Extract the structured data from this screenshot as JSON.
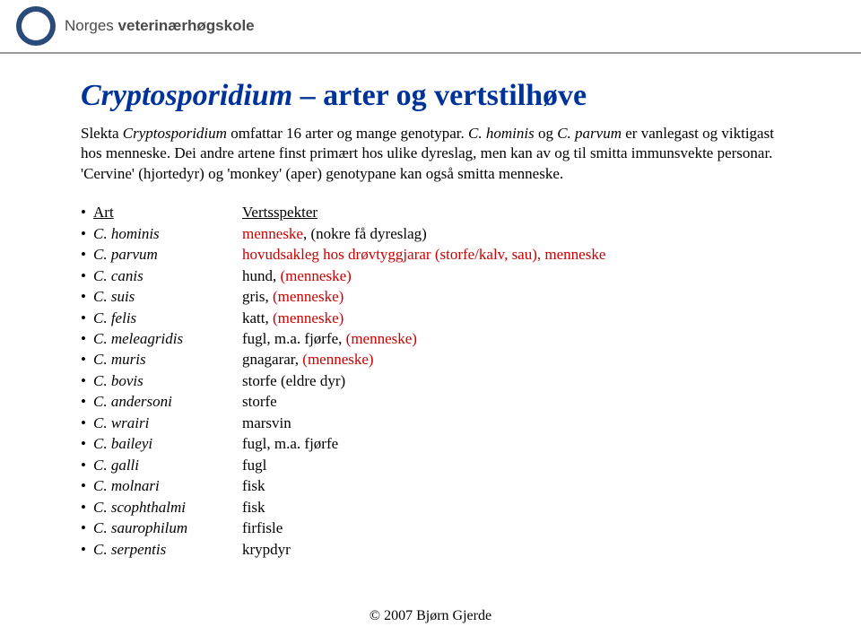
{
  "header": {
    "org_name_prefix": "Norges ",
    "org_name_bold": "veterinærhøgskole"
  },
  "title_italic": "Cryptosporidium",
  "title_rest": " – arter og vertstilhøve",
  "intro_line1a": "Slekta ",
  "intro_line1b": "Cryptosporidium",
  "intro_line1c": " omfattar 16 arter og mange genotypar. ",
  "intro_line1d": "C. hominis",
  "intro_line1e": " og ",
  "intro_line1f": "C. parvum",
  "intro_line1g": " er vanlegast og viktigast hos menneske. Dei andre artene finst primært hos ulike dyreslag, men kan av og til smitta immunsvekte personar. 'Cervine' (hjortedyr) og 'monkey' (aper) genotypane kan også smitta menneske.",
  "table_header_left": "Art",
  "table_header_right": "Vertsspekter",
  "rows": [
    {
      "sp": "C. hominis",
      "host": "menneske",
      "extra": ", (nokre få dyreslag)",
      "red": true
    },
    {
      "sp": "C. parvum",
      "host": "hovudsakleg hos drøvtyggjarar (storfe/kalv, sau), ",
      "extra": "menneske",
      "red": true,
      "extraRed": true
    },
    {
      "sp": "C. canis",
      "host": "hund, ",
      "extra": "(menneske)",
      "red": false,
      "extraRed": true
    },
    {
      "sp": "C. suis",
      "host": "gris, ",
      "extra": "(menneske)",
      "red": false,
      "extraRed": true
    },
    {
      "sp": "C. felis",
      "host": "katt, ",
      "extra": "(menneske)",
      "red": false,
      "extraRed": true
    },
    {
      "sp": "C. meleagridis",
      "host": "fugl, m.a. fjørfe, ",
      "extra": "(menneske)",
      "red": false,
      "extraRed": true
    },
    {
      "sp": "C. muris",
      "host": "gnagarar, ",
      "extra": "(menneske)",
      "red": false,
      "extraRed": true
    },
    {
      "sp": "C. bovis",
      "host": "storfe (eldre dyr)",
      "extra": "",
      "red": false
    },
    {
      "sp": "C. andersoni",
      "host": "storfe",
      "extra": "",
      "red": false
    },
    {
      "sp": "C. wrairi",
      "host": "marsvin",
      "extra": "",
      "red": false
    },
    {
      "sp": "C. baileyi",
      "host": "fugl, m.a. fjørfe",
      "extra": "",
      "red": false
    },
    {
      "sp": "C. galli",
      "host": "fugl",
      "extra": "",
      "red": false
    },
    {
      "sp": "C. molnari",
      "host": "fisk",
      "extra": "",
      "red": false
    },
    {
      "sp": "C. scophthalmi",
      "host": "fisk",
      "extra": "",
      "red": false
    },
    {
      "sp": "C. saurophilum",
      "host": "firfisle",
      "extra": "",
      "red": false
    },
    {
      "sp": "C. serpentis",
      "host": "krypdyr",
      "extra": "",
      "red": false
    }
  ],
  "footer": "© 2007 Bjørn Gjerde"
}
